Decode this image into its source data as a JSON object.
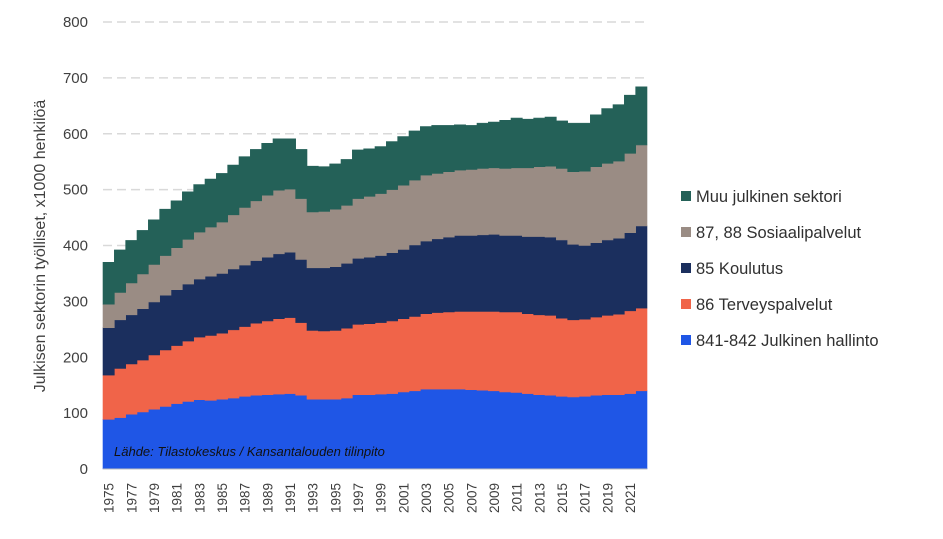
{
  "chart_data": {
    "type": "area",
    "stacked": true,
    "ylabel": "Julkisen sektorin työlliset, x1000 henkilöä",
    "xlabel": "",
    "ylim": [
      0,
      800
    ],
    "yticks": [
      0,
      100,
      200,
      300,
      400,
      500,
      600,
      700,
      800
    ],
    "grid": true,
    "legend_position": "right",
    "source_note": "Lähde: Tilastokeskus / Kansantalouden tilinpito",
    "x": [
      1975,
      1976,
      1977,
      1978,
      1979,
      1980,
      1981,
      1982,
      1983,
      1984,
      1985,
      1986,
      1987,
      1988,
      1989,
      1990,
      1991,
      1992,
      1993,
      1994,
      1995,
      1996,
      1997,
      1998,
      1999,
      2000,
      2001,
      2002,
      2003,
      2004,
      2005,
      2006,
      2007,
      2008,
      2009,
      2010,
      2011,
      2012,
      2013,
      2014,
      2015,
      2016,
      2017,
      2018,
      2019,
      2020,
      2021,
      2022
    ],
    "xtick_labels": [
      "1975",
      "1977",
      "1979",
      "1981",
      "1983",
      "1985",
      "1987",
      "1989",
      "1991",
      "1993",
      "1995",
      "1997",
      "1999",
      "2001",
      "2003",
      "2005",
      "2007",
      "2009",
      "2011",
      "2013",
      "2015",
      "2017",
      "2019",
      "2021"
    ],
    "series": [
      {
        "name": "841-842 Julkinen hallinto",
        "color": "#1f56e6",
        "values": [
          89,
          92,
          98,
          102,
          107,
          112,
          117,
          121,
          124,
          123,
          125,
          127,
          130,
          132,
          133,
          134,
          135,
          132,
          125,
          125,
          125,
          127,
          133,
          133,
          134,
          135,
          138,
          140,
          143,
          143,
          143,
          143,
          142,
          141,
          140,
          138,
          137,
          135,
          133,
          132,
          130,
          129,
          130,
          132,
          133,
          133,
          135,
          140
        ]
      },
      {
        "name": "86 Terveyspalvelut",
        "color": "#f06449",
        "values": [
          79,
          88,
          90,
          93,
          97,
          101,
          104,
          108,
          112,
          116,
          118,
          122,
          125,
          129,
          132,
          135,
          136,
          130,
          123,
          122,
          123,
          125,
          126,
          127,
          128,
          130,
          131,
          133,
          135,
          137,
          138,
          139,
          140,
          141,
          142,
          143,
          144,
          143,
          143,
          143,
          140,
          138,
          138,
          140,
          142,
          144,
          148,
          148
        ]
      },
      {
        "name": "85 Koulutus",
        "color": "#1b2f5e",
        "values": [
          85,
          87,
          88,
          92,
          95,
          98,
          100,
          102,
          104,
          106,
          107,
          109,
          110,
          112,
          114,
          116,
          117,
          113,
          112,
          113,
          114,
          116,
          118,
          119,
          120,
          122,
          124,
          128,
          130,
          132,
          134,
          136,
          136,
          137,
          138,
          137,
          137,
          138,
          140,
          140,
          140,
          135,
          132,
          133,
          135,
          136,
          140,
          147
        ]
      },
      {
        "name": "87, 88  Sosiaalipalvelut",
        "color": "#9a8c84",
        "values": [
          42,
          49,
          57,
          62,
          67,
          71,
          75,
          80,
          84,
          88,
          92,
          97,
          103,
          107,
          111,
          114,
          113,
          109,
          100,
          101,
          103,
          104,
          107,
          109,
          111,
          113,
          115,
          116,
          118,
          117,
          117,
          117,
          118,
          119,
          119,
          120,
          121,
          123,
          125,
          127,
          128,
          130,
          133,
          136,
          137,
          138,
          142,
          145
        ]
      },
      {
        "name": "Muu julkinen sektori",
        "color": "#246158",
        "values": [
          75,
          76,
          76,
          78,
          80,
          83,
          84,
          85,
          85,
          86,
          87,
          89,
          91,
          92,
          93,
          92,
          90,
          88,
          82,
          80,
          81,
          82,
          87,
          85,
          84,
          86,
          87,
          88,
          87,
          86,
          83,
          81,
          79,
          81,
          82,
          86,
          89,
          87,
          87,
          88,
          85,
          87,
          86,
          93,
          98,
          101,
          104,
          104
        ]
      }
    ]
  }
}
